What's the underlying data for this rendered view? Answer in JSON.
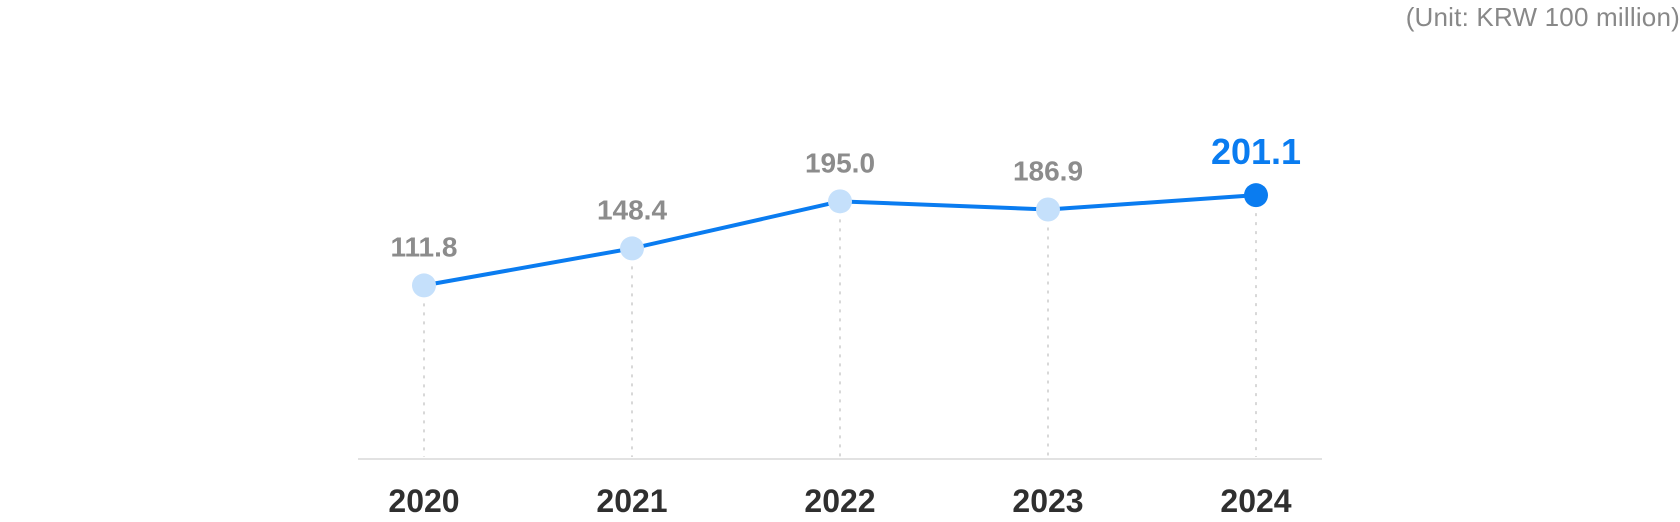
{
  "unit_note": "(Unit: KRW 100 million)",
  "chart_data": {
    "type": "line",
    "categories": [
      "2020",
      "2021",
      "2022",
      "2023",
      "2024"
    ],
    "series": [
      {
        "values": [
          111.8,
          148.4,
          195.0,
          186.9,
          201.1
        ],
        "labels": [
          "111.8",
          "148.4",
          "195.0",
          "186.9",
          "201.1"
        ]
      }
    ],
    "highlight_index": 4,
    "unit": "KRW 100 million",
    "ylim": [
      -60,
      240
    ],
    "grid": false,
    "colors": {
      "line": "#0a7cf0",
      "point": "#c5e0fb",
      "point_highlight": "#0a7cf0",
      "value_label": "#8c8c8c",
      "value_label_highlight": "#0a7cf0",
      "axis_label": "#2f2f2f",
      "guide": "#cccccc",
      "baseline": "#e2e2e2"
    }
  }
}
